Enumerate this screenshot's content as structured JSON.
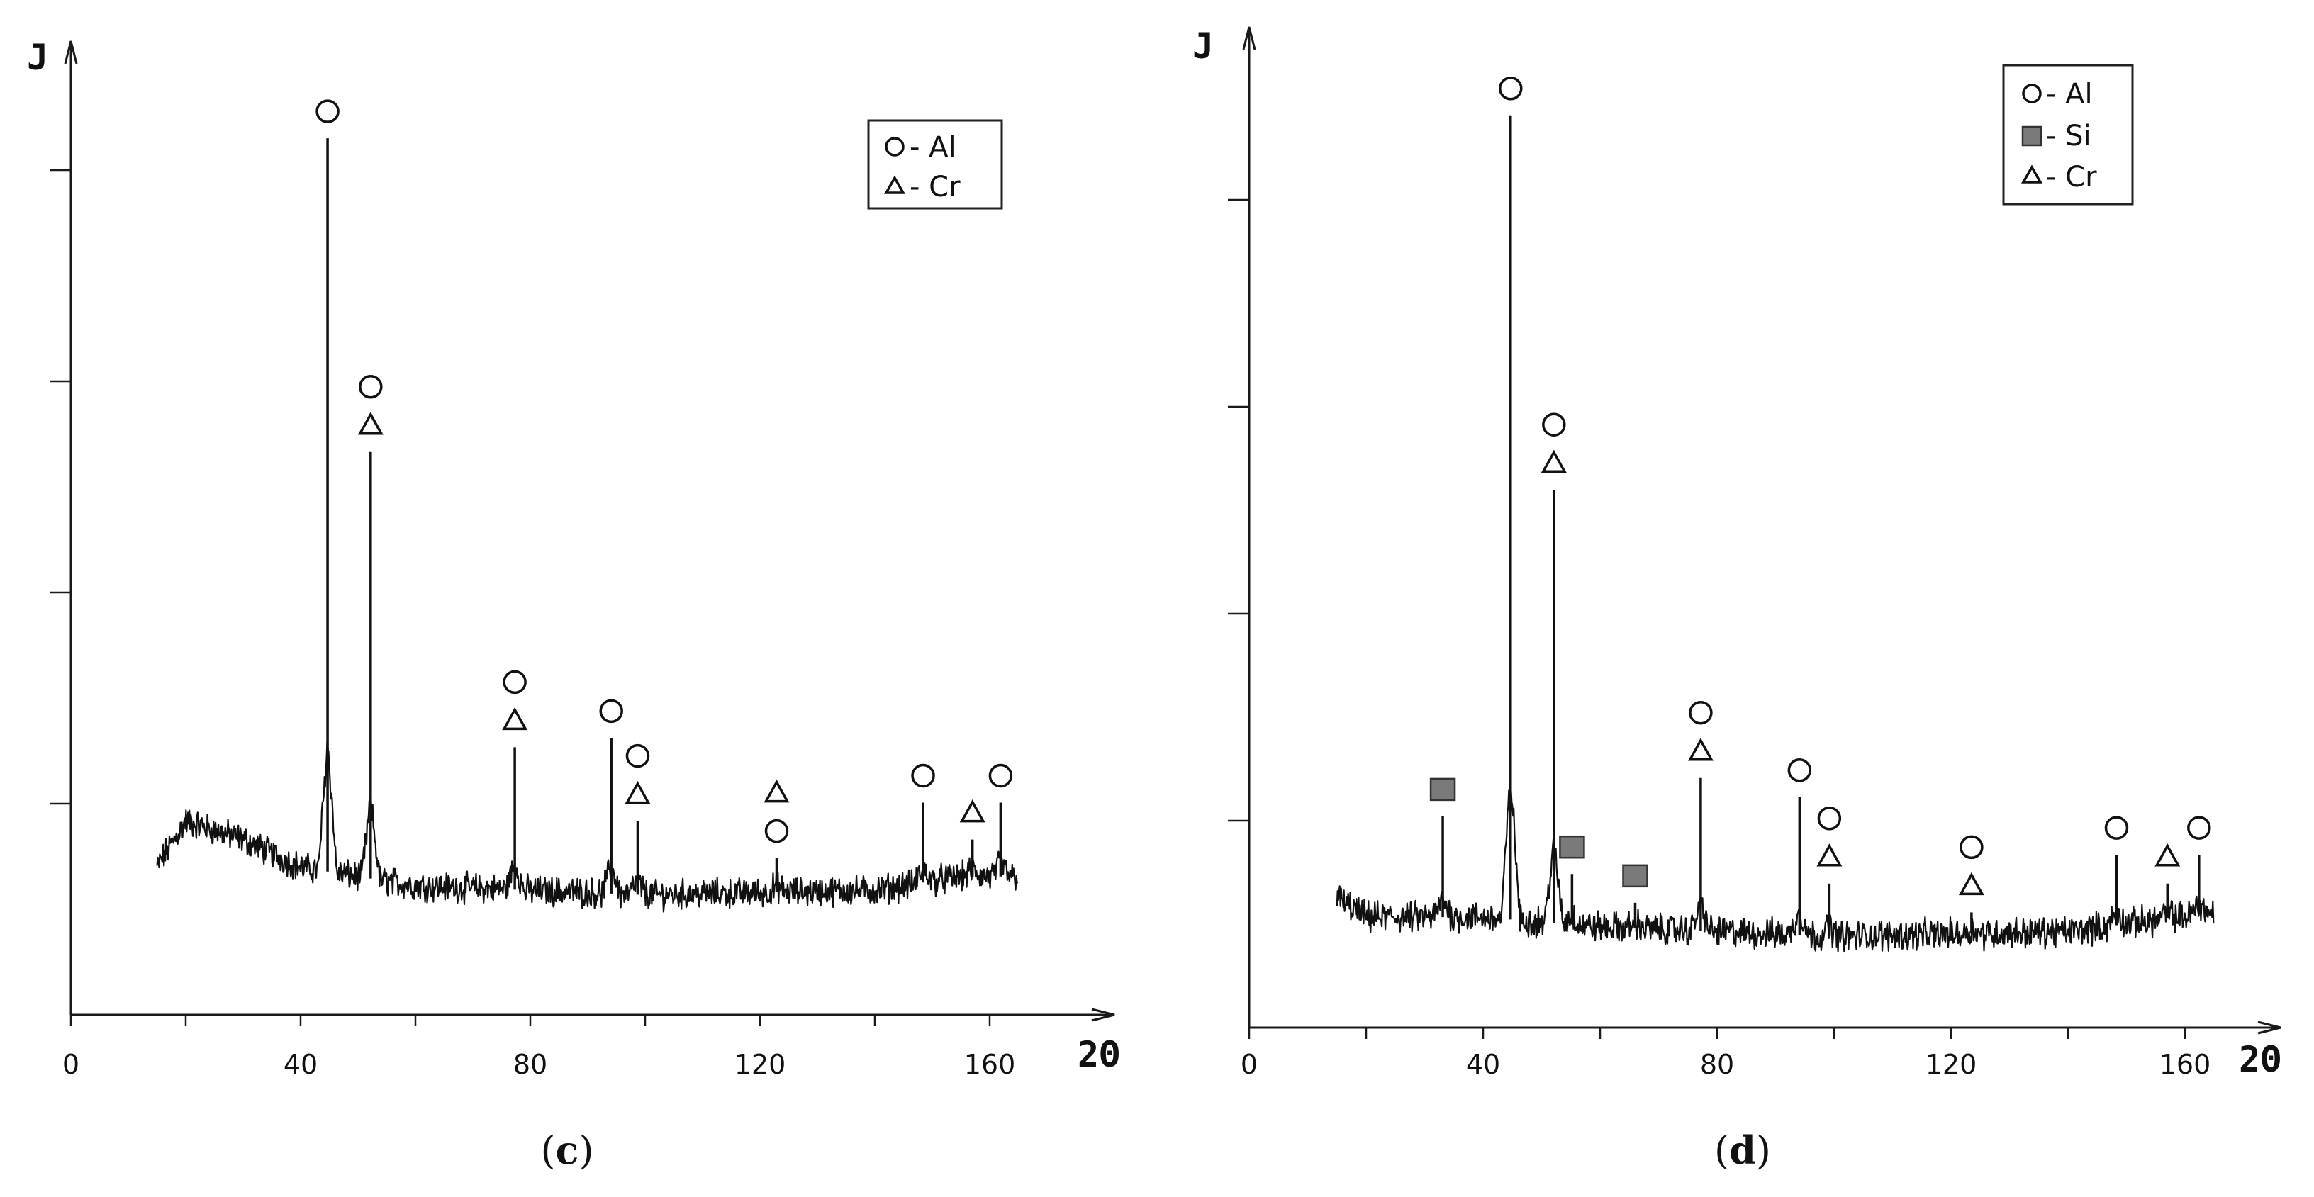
{
  "panels": [
    {
      "id": "c",
      "panel_label_open": "(",
      "panel_label_letter": "c",
      "panel_label_close": ")",
      "y_axis_label": "J",
      "x_axis_label": "2Θ",
      "legend": [
        {
          "marker": "circle",
          "text": "- Al"
        },
        {
          "marker": "triangle",
          "text": "- Cr"
        }
      ]
    },
    {
      "id": "d",
      "panel_label_open": "(",
      "panel_label_letter": "d",
      "panel_label_close": ")",
      "y_axis_label": "J",
      "x_axis_label": "2Θ",
      "legend": [
        {
          "marker": "circle",
          "text": "- Al"
        },
        {
          "marker": "square",
          "text": "- Si"
        },
        {
          "marker": "triangle",
          "text": "- Cr"
        }
      ]
    }
  ],
  "chart_data": [
    {
      "type": "line",
      "panel": "c",
      "xlabel": "2Θ",
      "ylabel": "J",
      "x_ticks": [
        0,
        40,
        80,
        120,
        160
      ],
      "xlim": [
        0,
        170
      ],
      "ylim": [
        0,
        100
      ],
      "x_range_scanned": [
        15,
        165
      ],
      "baseline_profile": [
        {
          "x": 15,
          "y": 16
        },
        {
          "x": 20,
          "y": 21
        },
        {
          "x": 30,
          "y": 19
        },
        {
          "x": 40,
          "y": 16
        },
        {
          "x": 60,
          "y": 14
        },
        {
          "x": 100,
          "y": 13
        },
        {
          "x": 140,
          "y": 13.5
        },
        {
          "x": 155,
          "y": 15
        },
        {
          "x": 165,
          "y": 15
        }
      ],
      "peaks": [
        {
          "x": 44.7,
          "y": 95,
          "markers": [
            "circle"
          ]
        },
        {
          "x": 52.2,
          "y": 61,
          "markers": [
            "circle",
            "triangle"
          ]
        },
        {
          "x": 77.3,
          "y": 29,
          "markers": [
            "circle",
            "triangle"
          ]
        },
        {
          "x": 94.1,
          "y": 30,
          "markers": [
            "circle"
          ]
        },
        {
          "x": 98.7,
          "y": 21,
          "markers": [
            "circle",
            "triangle"
          ]
        },
        {
          "x": 122.9,
          "y": 17,
          "markers": [
            "triangle",
            "circle"
          ]
        },
        {
          "x": 148.4,
          "y": 23,
          "markers": [
            "circle"
          ]
        },
        {
          "x": 157.0,
          "y": 19,
          "markers": [
            "triangle"
          ]
        },
        {
          "x": 161.9,
          "y": 23,
          "markers": [
            "circle"
          ]
        }
      ]
    },
    {
      "type": "line",
      "panel": "d",
      "xlabel": "2Θ",
      "ylabel": "J",
      "x_ticks": [
        0,
        40,
        80,
        120,
        160
      ],
      "xlim": [
        0,
        172
      ],
      "ylim": [
        0,
        100
      ],
      "x_range_scanned": [
        15,
        165
      ],
      "baseline_profile": [
        {
          "x": 15,
          "y": 13.5
        },
        {
          "x": 20,
          "y": 11.5
        },
        {
          "x": 40,
          "y": 11.5
        },
        {
          "x": 60,
          "y": 10.5
        },
        {
          "x": 100,
          "y": 9.5
        },
        {
          "x": 140,
          "y": 10
        },
        {
          "x": 165,
          "y": 12
        }
      ],
      "peaks": [
        {
          "x": 33.1,
          "y": 22,
          "markers": [
            "square"
          ]
        },
        {
          "x": 44.7,
          "y": 95,
          "markers": [
            "circle"
          ]
        },
        {
          "x": 52.1,
          "y": 56,
          "markers": [
            "circle",
            "triangle"
          ]
        },
        {
          "x": 55.2,
          "y": 16,
          "markers": [
            "square"
          ]
        },
        {
          "x": 66.0,
          "y": 13,
          "markers": [
            "square"
          ]
        },
        {
          "x": 77.2,
          "y": 26,
          "markers": [
            "circle",
            "triangle"
          ]
        },
        {
          "x": 94.1,
          "y": 24,
          "markers": [
            "circle"
          ]
        },
        {
          "x": 99.2,
          "y": 15,
          "markers": [
            "circle",
            "triangle"
          ]
        },
        {
          "x": 123.5,
          "y": 12,
          "markers": [
            "circle",
            "triangle"
          ]
        },
        {
          "x": 148.3,
          "y": 18,
          "markers": [
            "circle"
          ]
        },
        {
          "x": 157.0,
          "y": 15,
          "markers": [
            "triangle"
          ]
        },
        {
          "x": 162.4,
          "y": 18,
          "markers": [
            "circle"
          ]
        }
      ]
    }
  ]
}
